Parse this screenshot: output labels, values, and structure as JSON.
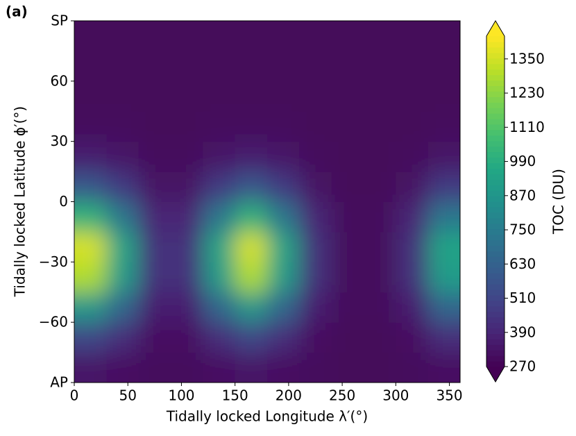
{
  "chart_data": {
    "type": "contour",
    "panel_label": "(a)",
    "xlabel": "Tidally locked Longitude λ′(°)",
    "ylabel": "Tidally locked Latitude ϕ′(°)",
    "colorbar_label": "TOC (DU)",
    "colormap": "viridis",
    "x": [
      15,
      45,
      75,
      105,
      135,
      165,
      195,
      225,
      255,
      285,
      315,
      345
    ],
    "y": [
      -82.5,
      -67.5,
      -52.5,
      -37.5,
      -22.5,
      -7.5,
      7.5,
      22.5,
      37.5,
      52.5,
      67.5,
      82.5
    ],
    "z": [
      [
        340,
        320,
        300,
        300,
        320,
        340,
        320,
        300,
        290,
        290,
        300,
        320
      ],
      [
        510,
        420,
        320,
        320,
        420,
        510,
        420,
        320,
        290,
        290,
        320,
        420
      ],
      [
        880,
        650,
        370,
        370,
        650,
        880,
        650,
        370,
        300,
        300,
        370,
        650
      ],
      [
        1290,
        900,
        430,
        430,
        900,
        1290,
        900,
        430,
        300,
        300,
        430,
        900
      ],
      [
        1360,
        940,
        430,
        430,
        940,
        1360,
        940,
        430,
        300,
        300,
        430,
        940
      ],
      [
        1010,
        730,
        390,
        390,
        730,
        1010,
        730,
        390,
        300,
        300,
        390,
        730
      ],
      [
        590,
        470,
        330,
        330,
        470,
        590,
        470,
        330,
        290,
        290,
        330,
        470
      ],
      [
        370,
        340,
        300,
        300,
        340,
        370,
        340,
        300,
        290,
        290,
        300,
        340
      ],
      [
        300,
        300,
        290,
        290,
        300,
        300,
        300,
        290,
        290,
        290,
        290,
        300
      ],
      [
        290,
        290,
        290,
        290,
        290,
        290,
        290,
        290,
        290,
        290,
        290,
        290
      ],
      [
        290,
        290,
        290,
        290,
        290,
        290,
        290,
        290,
        290,
        290,
        290,
        290
      ],
      [
        290,
        290,
        290,
        290,
        290,
        290,
        290,
        290,
        290,
        290,
        290,
        290
      ]
    ],
    "xlim": [
      0,
      360
    ],
    "xticks": [
      0,
      50,
      100,
      150,
      200,
      250,
      300,
      350
    ],
    "ylim": [
      -90,
      90
    ],
    "yticks": [
      {
        "value": -90,
        "label": "AP"
      },
      {
        "value": -60,
        "label": "−60"
      },
      {
        "value": -30,
        "label": "−30"
      },
      0,
      30,
      60,
      {
        "value": 90,
        "label": "SP"
      }
    ],
    "clim": [
      270,
      1430
    ],
    "cticks": [
      270,
      390,
      510,
      630,
      750,
      870,
      990,
      1110,
      1230,
      1350
    ]
  }
}
